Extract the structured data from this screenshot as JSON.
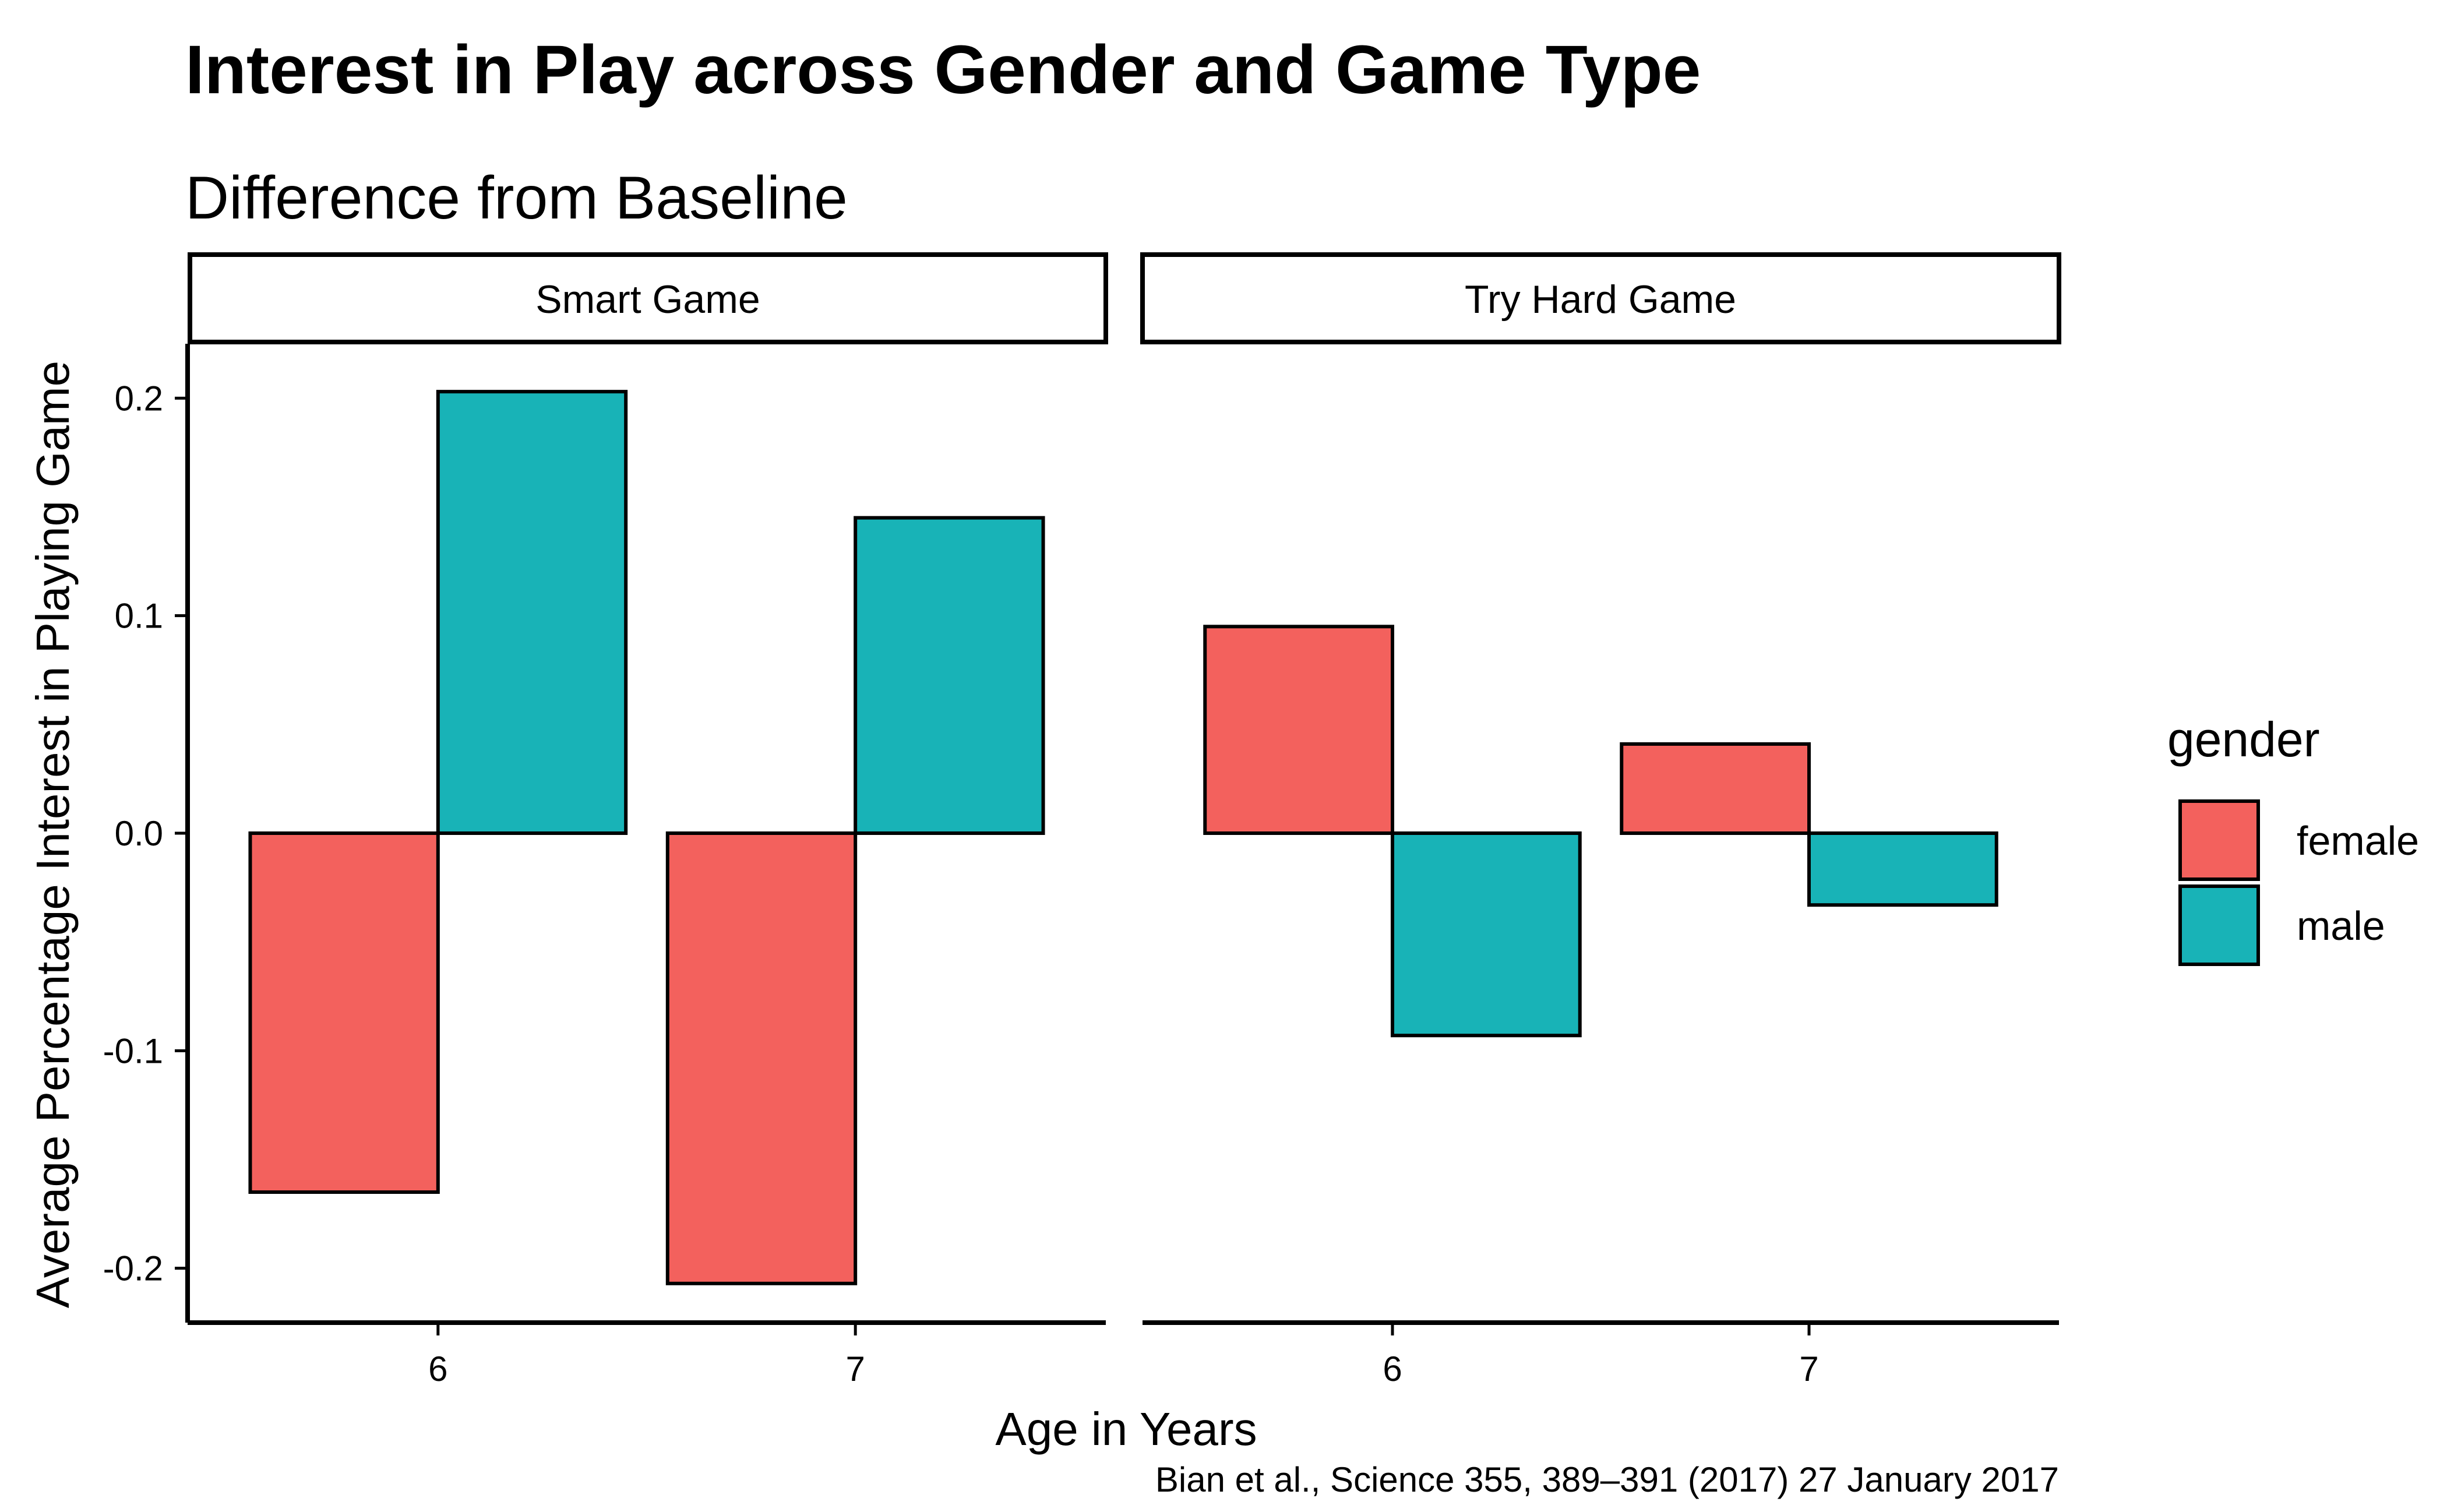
{
  "chart_data": {
    "type": "bar",
    "title": "Interest in Play across Gender and Game Type",
    "subtitle": "Difference from Baseline",
    "xlabel": "Age in Years",
    "ylabel": "Average Percentage Interest in Playing Game",
    "caption": "Bian et al., Science 355, 389–391 (2017) 27 January 2017",
    "ylim": [
      -0.225,
      0.225
    ],
    "yticks": [
      -0.2,
      -0.1,
      0.0,
      0.1,
      0.2
    ],
    "ytick_labels": [
      "-0.2",
      "-0.1",
      "0.0",
      "0.1",
      "0.2"
    ],
    "categories": [
      "6",
      "7"
    ],
    "grid": false,
    "legend": {
      "title": "gender",
      "placement": "right",
      "entries": [
        {
          "name": "female",
          "color": "#F3615D"
        },
        {
          "name": "male",
          "color": "#18B3B7"
        }
      ]
    },
    "facets": [
      {
        "label": "Smart Game",
        "series": [
          {
            "name": "female",
            "values": [
              -0.165,
              -0.207
            ]
          },
          {
            "name": "male",
            "values": [
              0.203,
              0.145
            ]
          }
        ]
      },
      {
        "label": "Try Hard Game",
        "series": [
          {
            "name": "female",
            "values": [
              0.095,
              0.041
            ]
          },
          {
            "name": "male",
            "values": [
              -0.093,
              -0.033
            ]
          }
        ]
      }
    ]
  }
}
